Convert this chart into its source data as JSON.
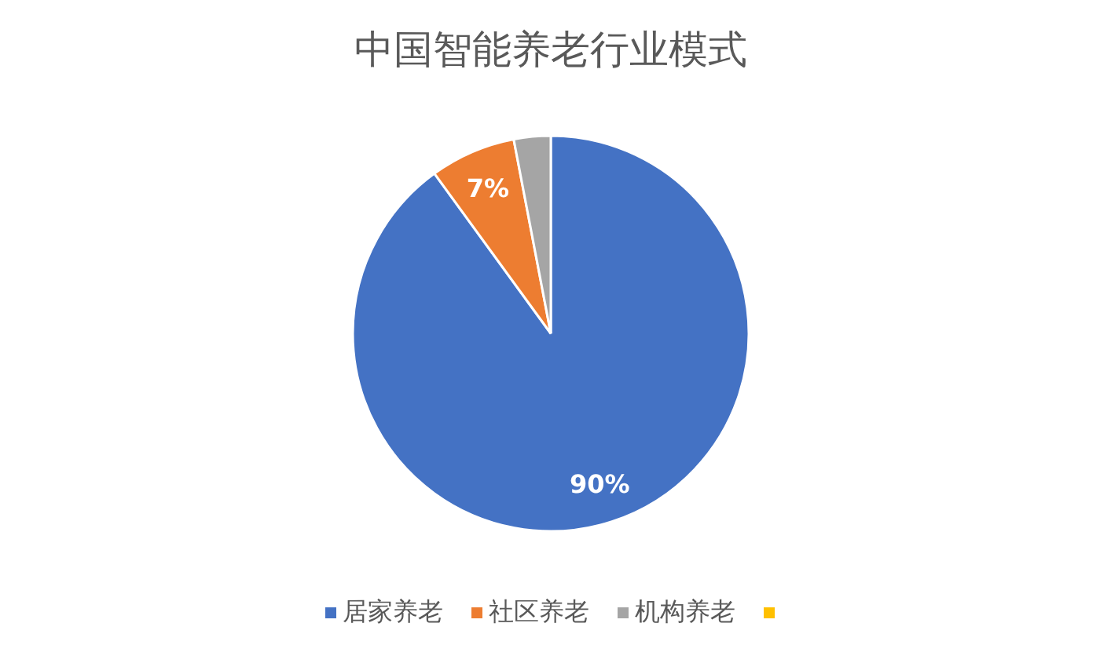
{
  "chart_data": {
    "type": "pie",
    "title": "中国智能养老行业模式",
    "categories": [
      "居家养老",
      "社区养老",
      "机构养老",
      null
    ],
    "values": [
      90,
      7,
      3,
      0
    ],
    "colors": [
      "#4472c4",
      "#ed7d31",
      "#a5a5a5",
      "#ffc000"
    ],
    "value_labels": [
      "90%",
      "7%",
      null,
      null
    ],
    "legend": "bottom"
  }
}
